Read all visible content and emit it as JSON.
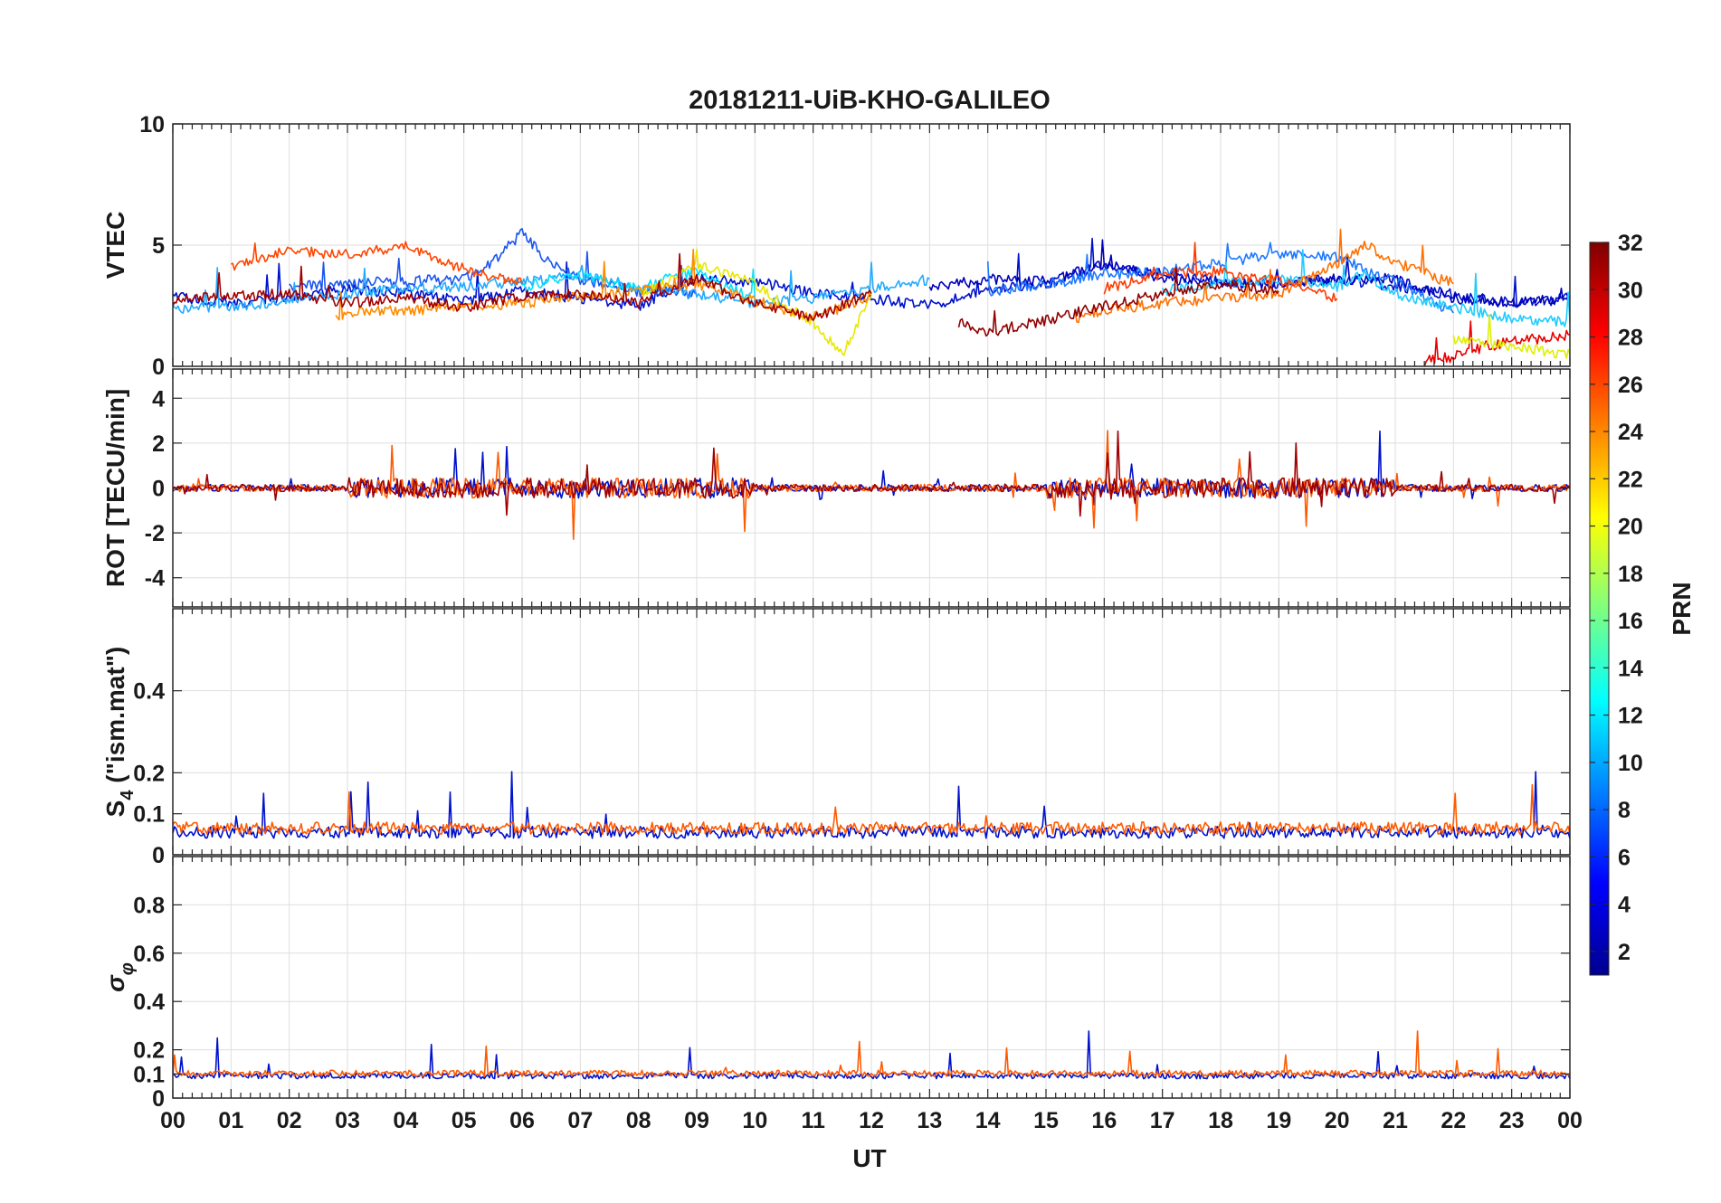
{
  "chart_data": {
    "type": "line",
    "title": "20181211-UiB-KHO-GALILEO",
    "xlabel": "UT",
    "x_ticks": [
      "00",
      "01",
      "02",
      "03",
      "04",
      "05",
      "06",
      "07",
      "08",
      "09",
      "10",
      "11",
      "12",
      "13",
      "14",
      "15",
      "16",
      "17",
      "18",
      "19",
      "20",
      "21",
      "22",
      "23",
      "00"
    ],
    "xlim": [
      0,
      24
    ],
    "colorbar": {
      "label": "PRN",
      "range": [
        1,
        32
      ],
      "ticks": [
        "2",
        "4",
        "6",
        "8",
        "10",
        "12",
        "14",
        "16",
        "18",
        "20",
        "22",
        "24",
        "26",
        "28",
        "30",
        "32"
      ],
      "colormap": "jet"
    },
    "panels": [
      {
        "name": "VTEC",
        "ylabel": "VTEC",
        "ylim": [
          0,
          10
        ],
        "yticks": [
          "0",
          "5",
          "10"
        ],
        "yticks_values": [
          0,
          5,
          10
        ],
        "series": [
          {
            "prn": 3,
            "color": "#0011cc",
            "x": [
              0,
              1,
              2,
              3,
              4,
              5,
              6,
              7,
              8,
              9,
              10,
              11,
              12,
              13,
              14,
              15,
              16,
              17,
              18,
              19,
              20,
              21,
              22,
              23,
              24
            ],
            "y": [
              2.9,
              2.6,
              2.8,
              3.2,
              3.0,
              2.7,
              3.1,
              2.8,
              2.5,
              3.6,
              3.5,
              3.0,
              2.8,
              2.5,
              3.2,
              3.4,
              4.2,
              3.8,
              3.5,
              3.4,
              3.6,
              3.3,
              3.0,
              2.6,
              2.8
            ]
          },
          {
            "prn": 7,
            "color": "#1a55ee",
            "x": [
              2,
              3,
              4,
              5,
              5.5,
              6,
              6.5,
              7,
              8,
              9
            ],
            "y": [
              3.3,
              3.4,
              3.5,
              3.6,
              4.3,
              5.5,
              4.2,
              3.6,
              3.1,
              3.0
            ]
          },
          {
            "prn": 11,
            "color": "#22aaff",
            "x": [
              0,
              1,
              2,
              3,
              4,
              5,
              6,
              7,
              8,
              9,
              10,
              11,
              12,
              13
            ],
            "y": [
              2.4,
              2.5,
              2.7,
              3.0,
              3.2,
              3.3,
              3.5,
              3.7,
              3.3,
              3.0,
              2.6,
              2.8,
              3.2,
              3.6
            ]
          },
          {
            "prn": 13,
            "color": "#00e0ff",
            "x": [
              6,
              6.5,
              7,
              7.5,
              8,
              8.5,
              9,
              9.5,
              10
            ],
            "y": [
              3.2,
              3.6,
              3.8,
              3.5,
              3.2,
              3.6,
              3.9,
              3.3,
              2.8
            ]
          },
          {
            "prn": 20,
            "color": "#e8e800",
            "x": [
              8,
              8.5,
              9,
              9.5,
              10,
              10.5,
              11,
              11.5,
              12
            ],
            "y": [
              3.0,
              3.5,
              4.2,
              3.8,
              3.4,
              2.5,
              1.8,
              0.5,
              2.9
            ]
          },
          {
            "prn": 23,
            "color": "#ff8a00",
            "x": [
              2.8,
              3,
              4,
              5,
              6,
              7,
              8,
              9,
              10,
              11,
              12
            ],
            "y": [
              1.9,
              2.2,
              2.3,
              2.5,
              2.6,
              2.9,
              3.1,
              3.4,
              2.7,
              2.0,
              2.9
            ]
          },
          {
            "prn": 25,
            "color": "#ff4500",
            "x": [
              1,
              1.5,
              2,
              3,
              4,
              5,
              6
            ],
            "y": [
              4.0,
              4.4,
              4.8,
              4.6,
              5.0,
              4.0,
              3.4
            ]
          },
          {
            "prn": 30,
            "color": "#a00000",
            "x": [
              0,
              1,
              2,
              3,
              4,
              5,
              6,
              7,
              8,
              9,
              10,
              11,
              12
            ],
            "y": [
              2.7,
              2.9,
              3.0,
              2.6,
              2.8,
              2.4,
              2.9,
              3.0,
              2.6,
              3.6,
              2.6,
              2.0,
              3.0
            ]
          },
          {
            "prn": 4,
            "color": "#0000bb",
            "x": [
              13,
              14,
              15,
              16,
              17,
              18,
              19,
              20,
              21,
              22,
              23,
              24
            ],
            "y": [
              3.2,
              3.6,
              3.5,
              4.2,
              3.6,
              3.5,
              3.4,
              3.6,
              3.6,
              2.8,
              2.6,
              2.8
            ]
          },
          {
            "prn": 9,
            "color": "#1e78ff",
            "x": [
              14,
              15,
              16,
              17,
              18,
              19,
              20,
              21,
              22
            ],
            "y": [
              3.1,
              3.4,
              3.8,
              3.9,
              4.3,
              4.6,
              4.5,
              3.5,
              2.2
            ]
          },
          {
            "prn": 12,
            "color": "#1ecbff",
            "x": [
              17,
              18,
              19,
              20,
              20.5,
              21,
              22,
              23,
              24
            ],
            "y": [
              3.1,
              3.4,
              3.6,
              3.3,
              3.8,
              3.0,
              2.4,
              2.0,
              1.8
            ]
          },
          {
            "prn": 24,
            "color": "#ff7000",
            "x": [
              15.5,
              16,
              17,
              18,
              19,
              20,
              20.5,
              21,
              22
            ],
            "y": [
              2.0,
              2.3,
              2.6,
              2.8,
              3.0,
              4.2,
              5.0,
              4.3,
              3.4
            ]
          },
          {
            "prn": 26,
            "color": "#ff3a00",
            "x": [
              16,
              17,
              18,
              19,
              20
            ],
            "y": [
              3.2,
              3.8,
              3.9,
              3.5,
              2.8
            ]
          },
          {
            "prn": 31,
            "color": "#900000",
            "x": [
              13.5,
              14,
              15,
              16,
              17,
              18,
              19
            ],
            "y": [
              1.8,
              1.4,
              1.9,
              2.5,
              3.0,
              3.4,
              3.1
            ]
          },
          {
            "prn": 28,
            "color": "#e80000",
            "x": [
              21.5,
              22,
              22.5,
              23,
              24
            ],
            "y": [
              0.2,
              0.4,
              0.8,
              1.0,
              1.3
            ]
          },
          {
            "prn": 19,
            "color": "#ddf000",
            "x": [
              22,
              23,
              24
            ],
            "y": [
              1.1,
              0.8,
              0.5
            ]
          }
        ]
      },
      {
        "name": "ROT",
        "ylabel": "ROT [TECU/min]",
        "ylim": [
          -5.3,
          5.3
        ],
        "yticks": [
          "-4",
          "-2",
          "0",
          "2",
          "4"
        ],
        "yticks_values": [
          -4,
          -2,
          0,
          2,
          4
        ],
        "series": [
          {
            "prn": 3,
            "color": "#0011cc",
            "x": [
              0,
              6,
              12,
              18,
              24
            ],
            "y": [
              0,
              0,
              0,
              0,
              0
            ]
          },
          {
            "prn": 25,
            "color": "#ff5a00",
            "x": [
              0,
              6,
              12,
              18,
              24
            ],
            "y": [
              0,
              0,
              0,
              0,
              0
            ]
          },
          {
            "prn": 30,
            "color": "#a00000",
            "x": [
              0,
              6,
              12,
              18,
              24
            ],
            "y": [
              0,
              0,
              0,
              0,
              0
            ]
          }
        ]
      },
      {
        "name": "S4",
        "ylabel": "S4 (\"ism.mat\")",
        "ylabel_main": "S",
        "ylabel_sub": "4",
        "ylabel_rest": " (\"ism.mat\")",
        "ylim": [
          0,
          0.6
        ],
        "yticks": [
          "0",
          "0.1",
          "0.2",
          "0.4"
        ],
        "yticks_values": [
          0,
          0.1,
          0.2,
          0.4
        ],
        "series": [
          {
            "prn": 3,
            "color": "#0011cc",
            "x": [
              0,
              6,
              12,
              18,
              24
            ],
            "y": [
              0.04,
              0.04,
              0.04,
              0.04,
              0.04
            ]
          },
          {
            "prn": 25,
            "color": "#ff5a00",
            "x": [
              0,
              6,
              12,
              18,
              24
            ],
            "y": [
              0.05,
              0.05,
              0.05,
              0.05,
              0.05
            ]
          }
        ]
      },
      {
        "name": "sigma_phi",
        "ylabel": "σφ",
        "ylabel_main": "σ",
        "ylabel_sub": "φ",
        "ylim": [
          0,
          1.0
        ],
        "yticks": [
          "0",
          "0.1",
          "0.2",
          "0.4",
          "0.6",
          "0.8"
        ],
        "yticks_values": [
          0,
          0.1,
          0.2,
          0.4,
          0.6,
          0.8
        ],
        "series": [
          {
            "prn": 3,
            "color": "#0011cc",
            "x": [
              0,
              6,
              12,
              18,
              24
            ],
            "y": [
              0.08,
              0.08,
              0.08,
              0.08,
              0.08
            ]
          },
          {
            "prn": 25,
            "color": "#ff5a00",
            "x": [
              0,
              6,
              12,
              18,
              24
            ],
            "y": [
              0.09,
              0.09,
              0.09,
              0.09,
              0.09
            ]
          }
        ]
      }
    ]
  }
}
